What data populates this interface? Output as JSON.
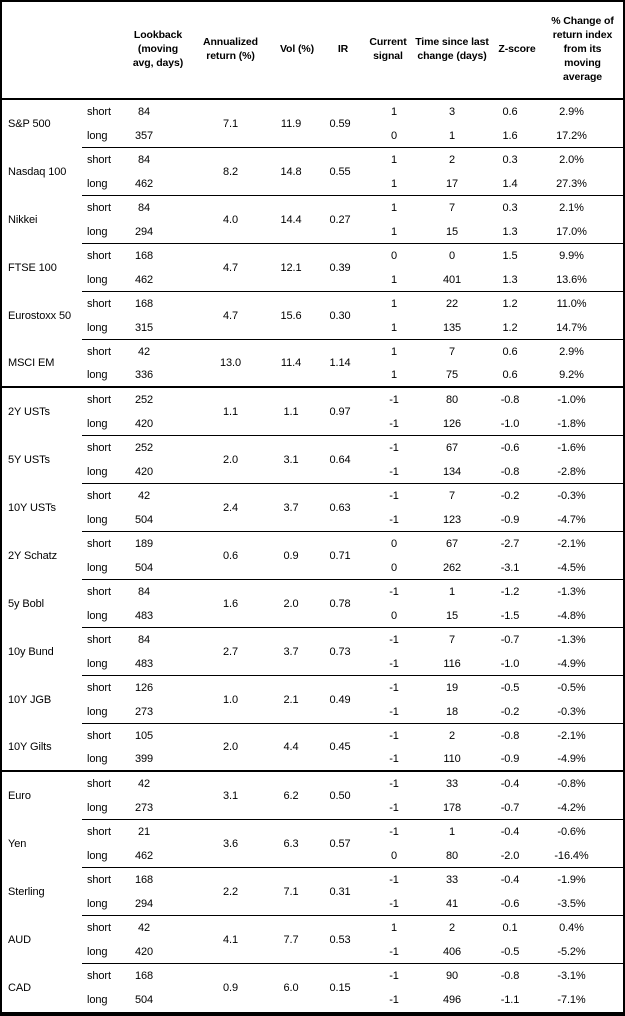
{
  "colors": {
    "background": "#ffffff",
    "text": "#000000",
    "border": "#000000"
  },
  "table": {
    "columns": [
      {
        "id": "asset",
        "label": ""
      },
      {
        "id": "horizon",
        "label": ""
      },
      {
        "id": "lookback",
        "label": "Lookback (moving avg, days)"
      },
      {
        "id": "annualized_return",
        "label": "Annualized return (%)"
      },
      {
        "id": "vol",
        "label": "Vol (%)"
      },
      {
        "id": "ir",
        "label": "IR"
      },
      {
        "id": "current_signal",
        "label": "Current signal"
      },
      {
        "id": "time_since",
        "label": "Time since last change (days)"
      },
      {
        "id": "zscore",
        "label": "Z-score"
      },
      {
        "id": "pct_change",
        "label": "% Change of return index from its moving average"
      }
    ],
    "groups": [
      {
        "asset": "S&P 500",
        "annualized_return": "7.1",
        "vol": "11.9",
        "ir": "0.59",
        "section_end": false,
        "rows": [
          {
            "horizon": "short",
            "lookback": "84",
            "signal": "1",
            "time_since": "3",
            "zscore": "0.6",
            "pct_change": "2.9%"
          },
          {
            "horizon": "long",
            "lookback": "357",
            "signal": "0",
            "time_since": "1",
            "zscore": "1.6",
            "pct_change": "17.2%"
          }
        ]
      },
      {
        "asset": "Nasdaq 100",
        "annualized_return": "8.2",
        "vol": "14.8",
        "ir": "0.55",
        "section_end": false,
        "rows": [
          {
            "horizon": "short",
            "lookback": "84",
            "signal": "1",
            "time_since": "2",
            "zscore": "0.3",
            "pct_change": "2.0%"
          },
          {
            "horizon": "long",
            "lookback": "462",
            "signal": "1",
            "time_since": "17",
            "zscore": "1.4",
            "pct_change": "27.3%"
          }
        ]
      },
      {
        "asset": "Nikkei",
        "annualized_return": "4.0",
        "vol": "14.4",
        "ir": "0.27",
        "section_end": false,
        "rows": [
          {
            "horizon": "short",
            "lookback": "84",
            "signal": "1",
            "time_since": "7",
            "zscore": "0.3",
            "pct_change": "2.1%"
          },
          {
            "horizon": "long",
            "lookback": "294",
            "signal": "1",
            "time_since": "15",
            "zscore": "1.3",
            "pct_change": "17.0%"
          }
        ]
      },
      {
        "asset": "FTSE 100",
        "annualized_return": "4.7",
        "vol": "12.1",
        "ir": "0.39",
        "section_end": false,
        "rows": [
          {
            "horizon": "short",
            "lookback": "168",
            "signal": "0",
            "time_since": "0",
            "zscore": "1.5",
            "pct_change": "9.9%"
          },
          {
            "horizon": "long",
            "lookback": "462",
            "signal": "1",
            "time_since": "401",
            "zscore": "1.3",
            "pct_change": "13.6%"
          }
        ]
      },
      {
        "asset": "Eurostoxx 50",
        "annualized_return": "4.7",
        "vol": "15.6",
        "ir": "0.30",
        "section_end": false,
        "rows": [
          {
            "horizon": "short",
            "lookback": "168",
            "signal": "1",
            "time_since": "22",
            "zscore": "1.2",
            "pct_change": "11.0%"
          },
          {
            "horizon": "long",
            "lookback": "315",
            "signal": "1",
            "time_since": "135",
            "zscore": "1.2",
            "pct_change": "14.7%"
          }
        ]
      },
      {
        "asset": "MSCI EM",
        "annualized_return": "13.0",
        "vol": "11.4",
        "ir": "1.14",
        "section_end": true,
        "rows": [
          {
            "horizon": "short",
            "lookback": "42",
            "signal": "1",
            "time_since": "7",
            "zscore": "0.6",
            "pct_change": "2.9%"
          },
          {
            "horizon": "long",
            "lookback": "336",
            "signal": "1",
            "time_since": "75",
            "zscore": "0.6",
            "pct_change": "9.2%"
          }
        ]
      },
      {
        "asset": "2Y USTs",
        "annualized_return": "1.1",
        "vol": "1.1",
        "ir": "0.97",
        "section_end": false,
        "rows": [
          {
            "horizon": "short",
            "lookback": "252",
            "signal": "-1",
            "time_since": "80",
            "zscore": "-0.8",
            "pct_change": "-1.0%"
          },
          {
            "horizon": "long",
            "lookback": "420",
            "signal": "-1",
            "time_since": "126",
            "zscore": "-1.0",
            "pct_change": "-1.8%"
          }
        ]
      },
      {
        "asset": "5Y USTs",
        "annualized_return": "2.0",
        "vol": "3.1",
        "ir": "0.64",
        "section_end": false,
        "rows": [
          {
            "horizon": "short",
            "lookback": "252",
            "signal": "-1",
            "time_since": "67",
            "zscore": "-0.6",
            "pct_change": "-1.6%"
          },
          {
            "horizon": "long",
            "lookback": "420",
            "signal": "-1",
            "time_since": "134",
            "zscore": "-0.8",
            "pct_change": "-2.8%"
          }
        ]
      },
      {
        "asset": "10Y USTs",
        "annualized_return": "2.4",
        "vol": "3.7",
        "ir": "0.63",
        "section_end": false,
        "rows": [
          {
            "horizon": "short",
            "lookback": "42",
            "signal": "-1",
            "time_since": "7",
            "zscore": "-0.2",
            "pct_change": "-0.3%"
          },
          {
            "horizon": "long",
            "lookback": "504",
            "signal": "-1",
            "time_since": "123",
            "zscore": "-0.9",
            "pct_change": "-4.7%"
          }
        ]
      },
      {
        "asset": "2Y Schatz",
        "annualized_return": "0.6",
        "vol": "0.9",
        "ir": "0.71",
        "section_end": false,
        "rows": [
          {
            "horizon": "short",
            "lookback": "189",
            "signal": "0",
            "time_since": "67",
            "zscore": "-2.7",
            "pct_change": "-2.1%"
          },
          {
            "horizon": "long",
            "lookback": "504",
            "signal": "0",
            "time_since": "262",
            "zscore": "-3.1",
            "pct_change": "-4.5%"
          }
        ]
      },
      {
        "asset": "5y Bobl",
        "annualized_return": "1.6",
        "vol": "2.0",
        "ir": "0.78",
        "section_end": false,
        "rows": [
          {
            "horizon": "short",
            "lookback": "84",
            "signal": "-1",
            "time_since": "1",
            "zscore": "-1.2",
            "pct_change": "-1.3%"
          },
          {
            "horizon": "long",
            "lookback": "483",
            "signal": "0",
            "time_since": "15",
            "zscore": "-1.5",
            "pct_change": "-4.8%"
          }
        ]
      },
      {
        "asset": "10y Bund",
        "annualized_return": "2.7",
        "vol": "3.7",
        "ir": "0.73",
        "section_end": false,
        "rows": [
          {
            "horizon": "short",
            "lookback": "84",
            "signal": "-1",
            "time_since": "7",
            "zscore": "-0.7",
            "pct_change": "-1.3%"
          },
          {
            "horizon": "long",
            "lookback": "483",
            "signal": "-1",
            "time_since": "116",
            "zscore": "-1.0",
            "pct_change": "-4.9%"
          }
        ]
      },
      {
        "asset": "10Y JGB",
        "annualized_return": "1.0",
        "vol": "2.1",
        "ir": "0.49",
        "section_end": false,
        "rows": [
          {
            "horizon": "short",
            "lookback": "126",
            "signal": "-1",
            "time_since": "19",
            "zscore": "-0.5",
            "pct_change": "-0.5%"
          },
          {
            "horizon": "long",
            "lookback": "273",
            "signal": "-1",
            "time_since": "18",
            "zscore": "-0.2",
            "pct_change": "-0.3%"
          }
        ]
      },
      {
        "asset": "10Y Gilts",
        "annualized_return": "2.0",
        "vol": "4.4",
        "ir": "0.45",
        "section_end": true,
        "rows": [
          {
            "horizon": "short",
            "lookback": "105",
            "signal": "-1",
            "time_since": "2",
            "zscore": "-0.8",
            "pct_change": "-2.1%"
          },
          {
            "horizon": "long",
            "lookback": "399",
            "signal": "-1",
            "time_since": "110",
            "zscore": "-0.9",
            "pct_change": "-4.9%"
          }
        ]
      },
      {
        "asset": "Euro",
        "annualized_return": "3.1",
        "vol": "6.2",
        "ir": "0.50",
        "section_end": false,
        "rows": [
          {
            "horizon": "short",
            "lookback": "42",
            "signal": "-1",
            "time_since": "33",
            "zscore": "-0.4",
            "pct_change": "-0.8%"
          },
          {
            "horizon": "long",
            "lookback": "273",
            "signal": "-1",
            "time_since": "178",
            "zscore": "-0.7",
            "pct_change": "-4.2%"
          }
        ]
      },
      {
        "asset": "Yen",
        "annualized_return": "3.6",
        "vol": "6.3",
        "ir": "0.57",
        "section_end": false,
        "rows": [
          {
            "horizon": "short",
            "lookback": "21",
            "signal": "-1",
            "time_since": "1",
            "zscore": "-0.4",
            "pct_change": "-0.6%"
          },
          {
            "horizon": "long",
            "lookback": "462",
            "signal": "0",
            "time_since": "80",
            "zscore": "-2.0",
            "pct_change": "-16.4%"
          }
        ]
      },
      {
        "asset": "Sterling",
        "annualized_return": "2.2",
        "vol": "7.1",
        "ir": "0.31",
        "section_end": false,
        "rows": [
          {
            "horizon": "short",
            "lookback": "168",
            "signal": "-1",
            "time_since": "33",
            "zscore": "-0.4",
            "pct_change": "-1.9%"
          },
          {
            "horizon": "long",
            "lookback": "294",
            "signal": "-1",
            "time_since": "41",
            "zscore": "-0.6",
            "pct_change": "-3.5%"
          }
        ]
      },
      {
        "asset": "AUD",
        "annualized_return": "4.1",
        "vol": "7.7",
        "ir": "0.53",
        "section_end": false,
        "rows": [
          {
            "horizon": "short",
            "lookback": "42",
            "signal": "1",
            "time_since": "2",
            "zscore": "0.1",
            "pct_change": "0.4%"
          },
          {
            "horizon": "long",
            "lookback": "420",
            "signal": "-1",
            "time_since": "406",
            "zscore": "-0.5",
            "pct_change": "-5.2%"
          }
        ]
      },
      {
        "asset": "CAD",
        "annualized_return": "0.9",
        "vol": "6.0",
        "ir": "0.15",
        "section_end": false,
        "rows": [
          {
            "horizon": "short",
            "lookback": "168",
            "signal": "-1",
            "time_since": "90",
            "zscore": "-0.8",
            "pct_change": "-3.1%"
          },
          {
            "horizon": "long",
            "lookback": "504",
            "signal": "-1",
            "time_since": "496",
            "zscore": "-1.1",
            "pct_change": "-7.1%"
          }
        ]
      }
    ]
  }
}
